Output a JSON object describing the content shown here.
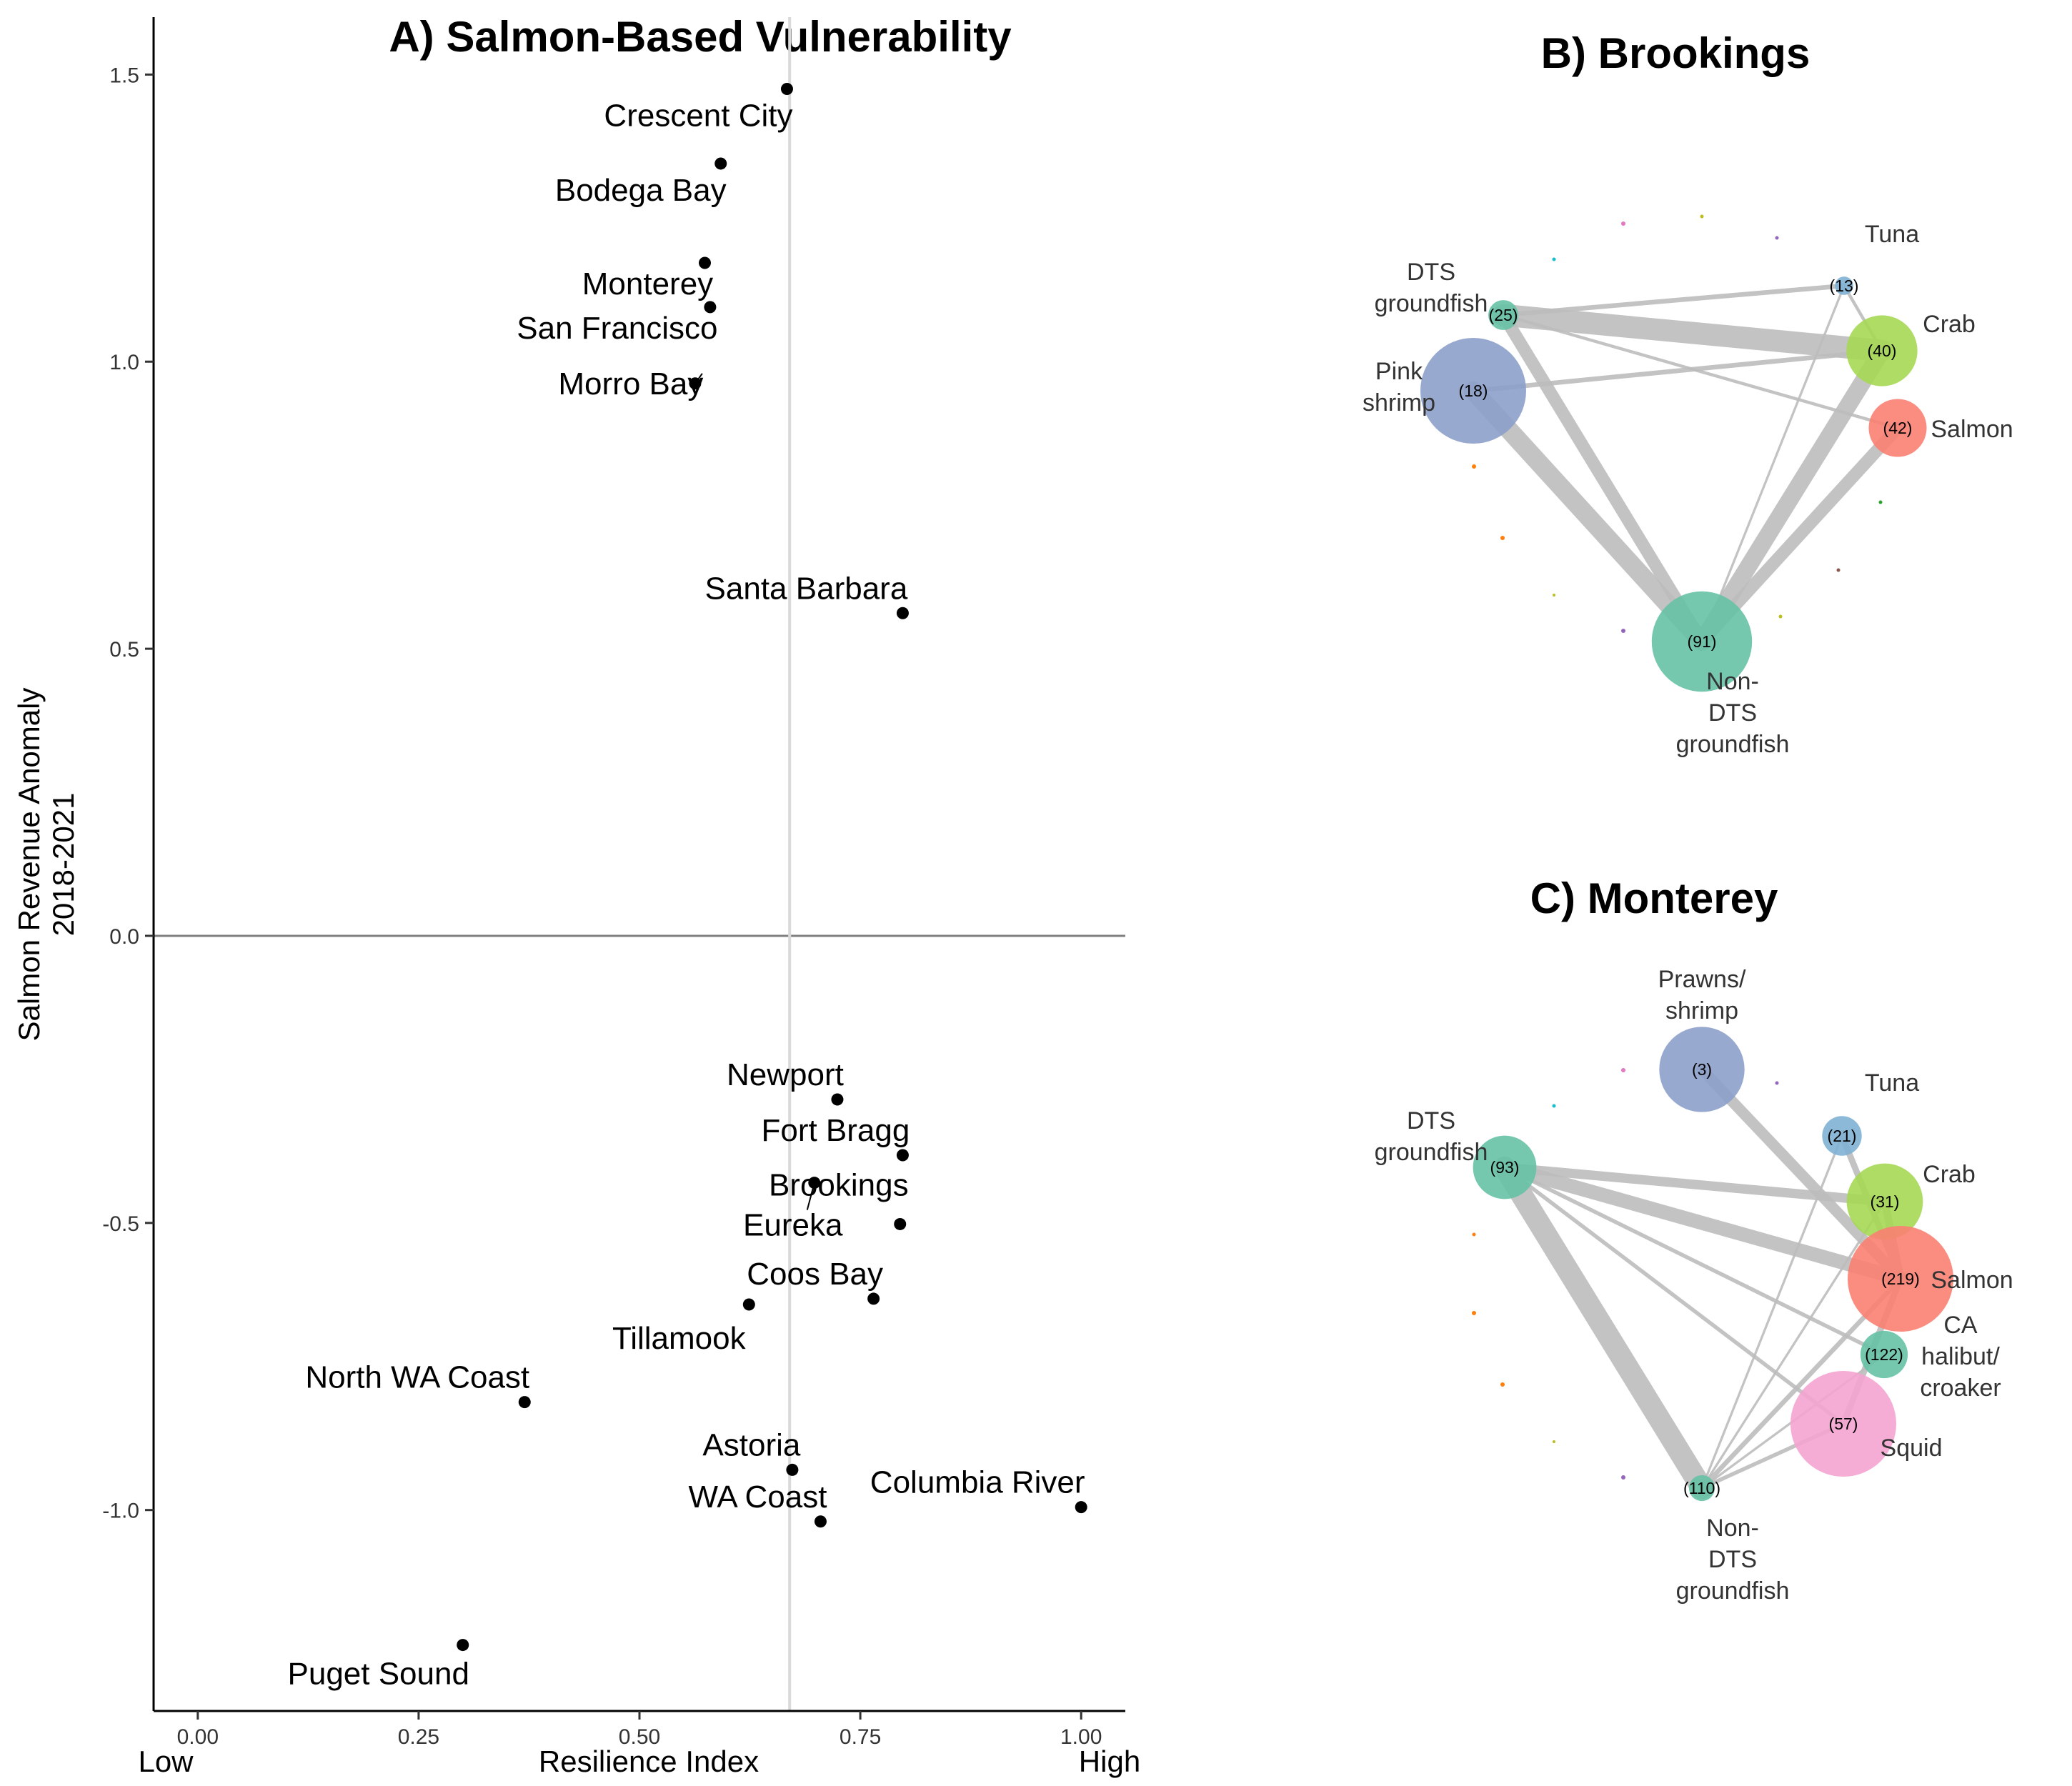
{
  "chart_data": [
    {
      "type": "scatter",
      "title": "A) Salmon-Based Vulnerability",
      "xlabel": "Resilience Index",
      "x_low_label": "Low",
      "x_high_label": "High",
      "ylabel_line1": "Salmon Revenue Anomaly",
      "ylabel_line2": "2018-2021",
      "xlim": [
        -0.05,
        1.05
      ],
      "ylim": [
        -1.35,
        1.6
      ],
      "xticks": [
        "0.00",
        "0.25",
        "0.50",
        "0.75",
        "1.00"
      ],
      "yticks": [
        "1.5",
        "1.0",
        "0.5",
        "0.0",
        "-0.5",
        "-1.0"
      ],
      "vline_x": 0.67,
      "hline_y": 0.0,
      "points": [
        {
          "label": "Crescent City",
          "x": 0.667,
          "y": 1.475
        },
        {
          "label": "Bodega Bay",
          "x": 0.592,
          "y": 1.345
        },
        {
          "label": "Monterey",
          "x": 0.574,
          "y": 1.172
        },
        {
          "label": "San Francisco",
          "x": 0.58,
          "y": 1.095
        },
        {
          "label": "Morro Bay",
          "x": 0.563,
          "y": 0.962
        },
        {
          "label": "Santa Barbara",
          "x": 0.798,
          "y": 0.562
        },
        {
          "label": "Newport",
          "x": 0.724,
          "y": -0.285
        },
        {
          "label": "Fort Bragg",
          "x": 0.798,
          "y": -0.382
        },
        {
          "label": "Brookings",
          "x": 0.698,
          "y": -0.43
        },
        {
          "label": "Eureka",
          "x": 0.795,
          "y": -0.502
        },
        {
          "label": "Coos Bay",
          "x": 0.765,
          "y": -0.632
        },
        {
          "label": "Tillamook",
          "x": 0.624,
          "y": -0.642
        },
        {
          "label": "North WA Coast",
          "x": 0.37,
          "y": -0.812
        },
        {
          "label": "Astoria",
          "x": 0.673,
          "y": -0.93
        },
        {
          "label": "WA Coast",
          "x": 0.705,
          "y": -1.02
        },
        {
          "label": "Columbia River",
          "x": 1.0,
          "y": -0.995
        },
        {
          "label": "Puget Sound",
          "x": 0.3,
          "y": -1.235
        }
      ]
    },
    {
      "type": "network",
      "title": "B) Brookings",
      "nodes": [
        {
          "id": "dts",
          "name_lines": [
            "DTS",
            "groundfish"
          ],
          "count": "(25)",
          "color": "#66c2a5",
          "size": 8
        },
        {
          "id": "pink",
          "name_lines": [
            "Pink",
            "shrimp"
          ],
          "count": "(18)",
          "color": "#8da0cb",
          "size": 100
        },
        {
          "id": "tuna",
          "name_lines": [
            "Tuna"
          ],
          "count": "(13)",
          "color": "#80b1d3",
          "size": 3
        },
        {
          "id": "crab",
          "name_lines": [
            "Crab"
          ],
          "count": "(40)",
          "color": "#a6d854",
          "size": 45
        },
        {
          "id": "salmon",
          "name_lines": [
            "Salmon"
          ],
          "count": "(42)",
          "color": "#fb8072",
          "size": 30
        },
        {
          "id": "nondts",
          "name_lines": [
            "Non-",
            "DTS",
            "groundfish"
          ],
          "count": "(91)",
          "color": "#66c2a5",
          "size": 90
        }
      ],
      "edges": [
        {
          "from": "dts",
          "to": "crab",
          "weight": 28
        },
        {
          "from": "dts",
          "to": "nondts",
          "weight": 16
        },
        {
          "from": "dts",
          "to": "tuna",
          "weight": 6
        },
        {
          "from": "dts",
          "to": "salmon",
          "weight": 4
        },
        {
          "from": "pink",
          "to": "nondts",
          "weight": 24
        },
        {
          "from": "pink",
          "to": "crab",
          "weight": 6
        },
        {
          "from": "crab",
          "to": "nondts",
          "weight": 22
        },
        {
          "from": "salmon",
          "to": "nondts",
          "weight": 16
        },
        {
          "from": "tuna",
          "to": "nondts",
          "weight": 3
        },
        {
          "from": "tuna",
          "to": "crab",
          "weight": 4
        }
      ]
    },
    {
      "type": "network",
      "title": "C) Monterey",
      "nodes": [
        {
          "id": "prawns",
          "name_lines": [
            "Prawns/",
            "shrimp"
          ],
          "count": "(3)",
          "color": "#8da0cb",
          "size": 65
        },
        {
          "id": "tuna",
          "name_lines": [
            "Tuna"
          ],
          "count": "(21)",
          "color": "#80b1d3",
          "size": 14
        },
        {
          "id": "dts",
          "name_lines": [
            "DTS",
            "groundfish"
          ],
          "count": "(93)",
          "color": "#66c2a5",
          "size": 36
        },
        {
          "id": "crab",
          "name_lines": [
            "Crab"
          ],
          "count": "(31)",
          "color": "#a6d854",
          "size": 52
        },
        {
          "id": "salmon",
          "name_lines": [
            "Salmon"
          ],
          "count": "(219)",
          "color": "#fb8072",
          "size": 100
        },
        {
          "id": "halibut",
          "name_lines": [
            "CA",
            "halibut/",
            "croaker"
          ],
          "count": "(122)",
          "color": "#66c2a5",
          "size": 20
        },
        {
          "id": "squid",
          "name_lines": [
            "Squid"
          ],
          "count": "(57)",
          "color": "#f4a3d0",
          "size": 100
        },
        {
          "id": "nondts",
          "name_lines": [
            "Non-",
            "DTS",
            "groundfish"
          ],
          "count": "(110)",
          "color": "#66c2a5",
          "size": 6
        }
      ],
      "edges": [
        {
          "from": "dts",
          "to": "salmon",
          "weight": 18
        },
        {
          "from": "dts",
          "to": "crab",
          "weight": 12
        },
        {
          "from": "dts",
          "to": "nondts",
          "weight": 28
        },
        {
          "from": "dts",
          "to": "halibut",
          "weight": 5
        },
        {
          "from": "dts",
          "to": "squid",
          "weight": 5
        },
        {
          "from": "prawns",
          "to": "salmon",
          "weight": 14
        },
        {
          "from": "tuna",
          "to": "salmon",
          "weight": 8
        },
        {
          "from": "tuna",
          "to": "nondts",
          "weight": 3
        },
        {
          "from": "crab",
          "to": "salmon",
          "weight": 10
        },
        {
          "from": "salmon",
          "to": "nondts",
          "weight": 6
        },
        {
          "from": "salmon",
          "to": "squid",
          "weight": 8
        },
        {
          "from": "crab",
          "to": "nondts",
          "weight": 3
        },
        {
          "from": "halibut",
          "to": "nondts",
          "weight": 3
        },
        {
          "from": "squid",
          "to": "nondts",
          "weight": 5
        }
      ]
    }
  ]
}
